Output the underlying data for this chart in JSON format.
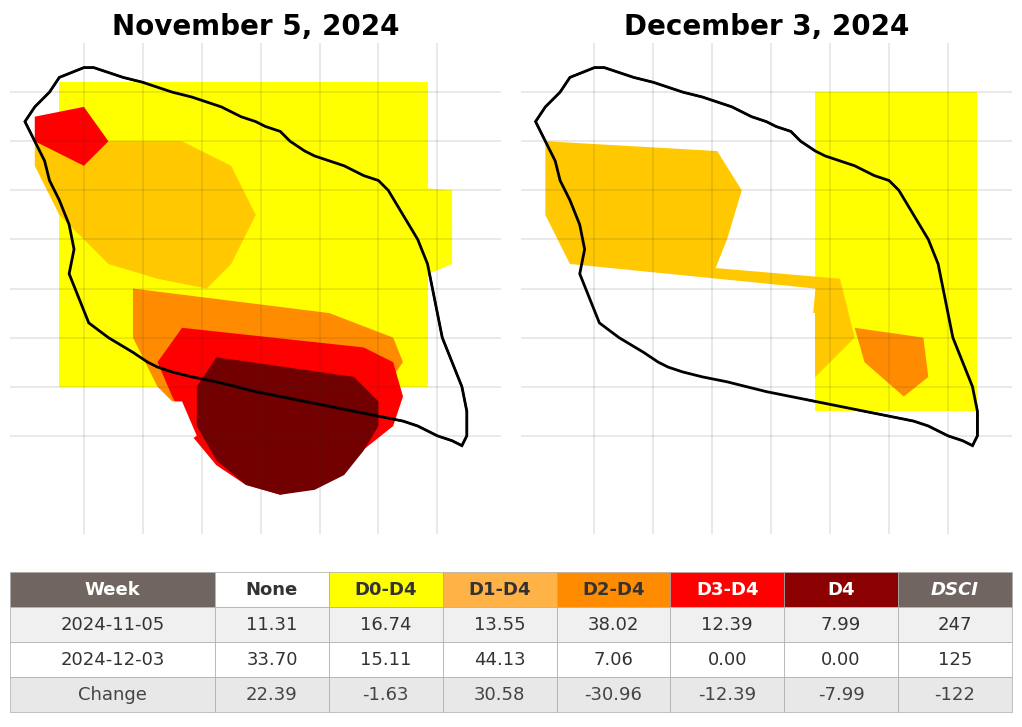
{
  "title_left": "November 5, 2024",
  "title_right": "December 3, 2024",
  "table_header": [
    "Week",
    "None",
    "D0-D4",
    "D1-D4",
    "D2-D4",
    "D3-D4",
    "D4",
    "DSCI"
  ],
  "table_rows": [
    [
      "2024-11-05",
      "11.31",
      "16.74",
      "13.55",
      "38.02",
      "12.39",
      "7.99",
      "247"
    ],
    [
      "2024-12-03",
      "33.70",
      "15.11",
      "44.13",
      "7.06",
      "0.00",
      "0.00",
      "125"
    ],
    [
      "Change",
      "22.39",
      "-1.63",
      "30.58",
      "-30.96",
      "-12.39",
      "-7.99",
      "-122"
    ]
  ],
  "header_bg": "#706560",
  "header_text": "#ffffff",
  "row_bg_even": "#f0f0f0",
  "row_bg_odd": "#ffffff",
  "row_text": "#333333",
  "change_row_bg": "#e8e8e8",
  "col_colors": [
    "#ffffff",
    "#ffffff",
    "#ffff00",
    "#ffb347",
    "#ff8800",
    "#ff2200",
    "#8b0000",
    "#ffffff"
  ],
  "col_header_text_colors": [
    "#ffffff",
    "#333333",
    "#333333",
    "#333333",
    "#333333",
    "#ffffff",
    "#ffffff",
    "#333333"
  ],
  "background_color": "#ffffff",
  "map_bg": "#ffffff",
  "title_fontsize": 20,
  "table_fontsize": 13,
  "fig_width": 10.22,
  "fig_height": 7.27,
  "drought_colors": {
    "none": "#ffffff",
    "d0": "#ffff00",
    "d1": "#ffc800",
    "d2": "#ff8c00",
    "d3": "#ff0000",
    "d4": "#720000"
  },
  "ohio_border_color": "#000000",
  "county_border_color": "#333333"
}
